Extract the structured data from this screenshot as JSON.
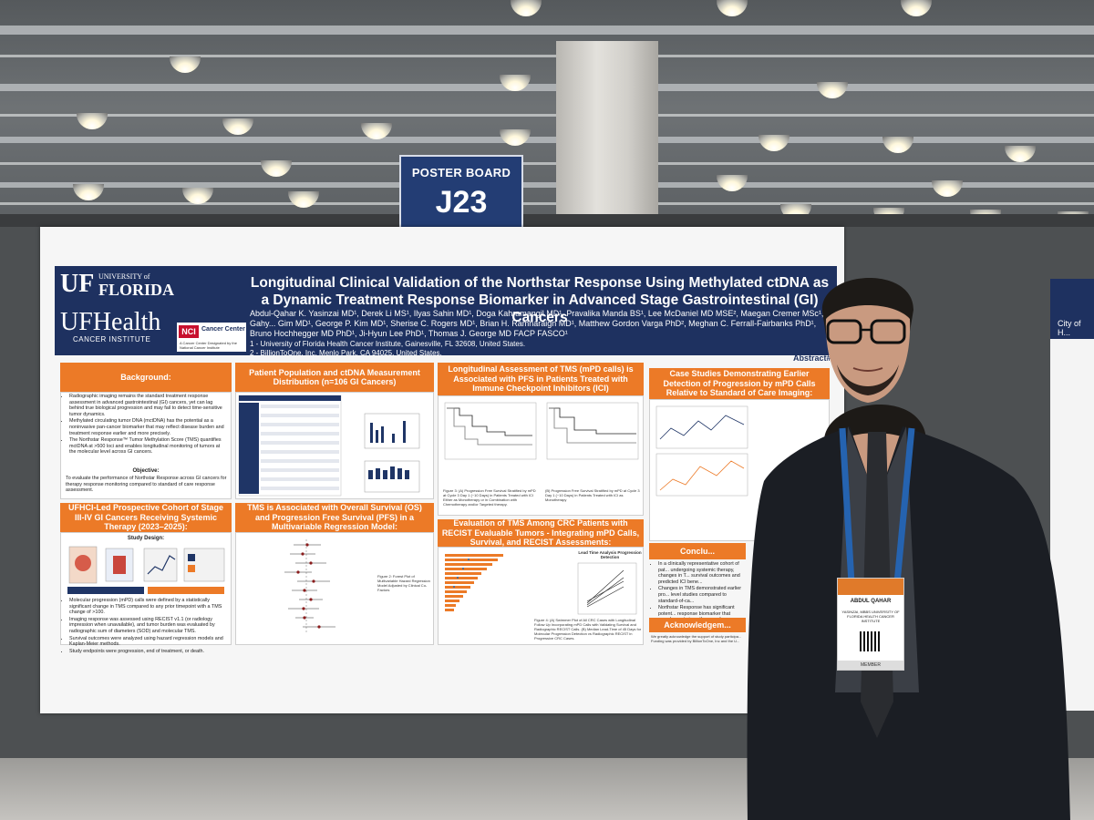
{
  "sign": {
    "line1": "POSTER BOARD",
    "line2": "J23"
  },
  "logos": {
    "uf_letters": "UF",
    "uf_university": "UNIVERSITY of",
    "uf_florida": "FLORIDA",
    "ufhealth": "UFHealth",
    "cancer_institute": "CANCER INSTITUTE",
    "nci_mark": "NCI",
    "nci_center": "Cancer Center",
    "nci_desc": "A Cancer Center Designated by the National Cancer Institute"
  },
  "poster": {
    "title": "Longitudinal Clinical Validation of the Northstar Response Using Methylated ctDNA as a Dynamic Treatment Response Biomarker in Advanced Stage Gastrointestinal (GI) Cancers",
    "authors": "Abdul-Qahar K. Yasinzai MD¹, Derek Li MS¹, Ilyas Sahin MD¹, Doga Kahramangil MD¹, Pravalika Manda BS¹, Lee McDaniel MD MSE², Maegan Cremer MSc¹, Gahy... Gim MD¹, George P. Kim MD¹, Sherise C. Rogers MD¹, Brian H. Ramnaraign MD¹, Matthew Gordon Varga PhD², Meghan C. Ferrall-Fairbanks PhD¹, Bruno Hochhegger MD PhD¹, Ji-Hyun Lee PhD¹, Thomas J. George MD FACP FASCO¹",
    "affil1": "1 - University of Florida Health Cancer Institute, Gainesville, FL 32608, United States.",
    "affil2": "2 - BillionToOne, Inc, Menlo Park, CA 94025, United States.",
    "abstract": "Abstract# 23",
    "sections": {
      "background_head": "Background:",
      "background_items": [
        "Radiographic imaging remains the standard treatment response assessment in advanced gastrointestinal (GI) cancers, yet can lag behind true biological progression and may fail to detect time-sensitive tumor dynamics.",
        "Methylated circulating tumor DNA (mctDNA) has the potential as a noninvasive pan-cancer biomarker that may reflect disease burden and treatment response earlier and more precisely.",
        "The Northstar Response™ Tumor Methylation Score (TMS) quantifies mctDNA at >500 loci and enables longitudinal monitoring of tumors at the molecular level across GI cancers."
      ],
      "objective_head": "Objective:",
      "objective_text": "To evaluate the performance of Northstar Response across GI cancers for therapy response monitoring compared to standard of care response assessment.",
      "patient_head": "Patient Population and ctDNA Measurement Distribution (n=106 GI Cancers)",
      "longitudinal_head": "Longitudinal Assessment of TMS (mPD calls) is Associated with PFS in Patients Treated with Immune Checkpoint Inhibitors (ICI)",
      "case_head": "Case Studies Demonstrating Earlier Detection of Progression by mPD Calls Relative to Standard of Care Imaging:",
      "cohort_head": "UFHCI-Led Prospective Cohort of Stage III-IV GI Cancers Receiving Systemic Therapy (2023–2025):",
      "study_design": "Study Design:",
      "cohort_items": [
        "Molecular progression (mPD) calls were defined by a statistically significant change in TMS compared to any prior timepoint with a TMS change of >100.",
        "Imaging response was assessed using RECIST v1.1 (or radiology impression when unavailable), and tumor burden was evaluated by radiographic sum of diameters (SOD) and molecular TMS.",
        "Survival outcomes were analyzed using hazard regression models and Kaplan-Meier methods.",
        "Study endpoints were progression, end of treatment, or death."
      ],
      "os_head": "TMS is Associated with Overall Survival (OS) and Progression Free Survival (PFS) in a Multivariable Regression Model:",
      "crc_head": "Evaluation of TMS Among CRC Patients with RECIST Evaluable Tumors - Integrating mPD Calls, Survival, and RECIST Assessments:",
      "conclusion_head": "Conclu...",
      "conclusion_items": [
        "In a clinically representative cohort of pat... undergoing systemic therapy, changes in T... survival outcomes and predicted ICI bene...",
        "Changes in TMS demonstrated earlier pro... level studies compared to standard-of-ca...",
        "Northstar Response has significant potent... response biomarker that complements im... therapeutic decisions."
      ],
      "ack_head": "Acknowledgem...",
      "ack_text": "We greatly acknowledge the support of study participa... Funding was provided by BillionToOne, Inc and the U...",
      "lead_time_title": "Lead Time Analysis Progression Detection",
      "forest_caption": "Figure 2: Forest Plot of Multivariable Hazard Regression Model Adjusted by Clinical Co-Factors",
      "fig3a": "Figure 3: (A) Progression Free Survival Stratified by mPD at Cycle 3 Day 1 (~10 Days) in Patients Treated with ICI Either as Monotherapy or in Combination with Chemotherapy and/or Targeted therapy.",
      "fig3b": "(B) Progression Free Survival Stratified by mPD at Cycle 3 Day 1 (~10 Days) in Patients Treated with ICI as Monotherapy",
      "fig4": "Figure 4: (A) Swimmer Plot of All CRC Cases with Longitudinal Follow Up Incorporating mPD Calls with Validating Survival and Radiographic RECIST Calls. (B) Median Lead-Time of 45 Days for Molecular Progression Detection vs Radiographic RECIST in Progressive CRC Cases."
    }
  },
  "badge": {
    "name": "ABDUL QAHAR",
    "org": "YASINZAI, MBBS\nUNIVERSITY OF FLORIDA HEALTH CANCER INSTITUTE",
    "role": "MEMBER"
  },
  "right_poster": {
    "logo": "City of H..."
  }
}
